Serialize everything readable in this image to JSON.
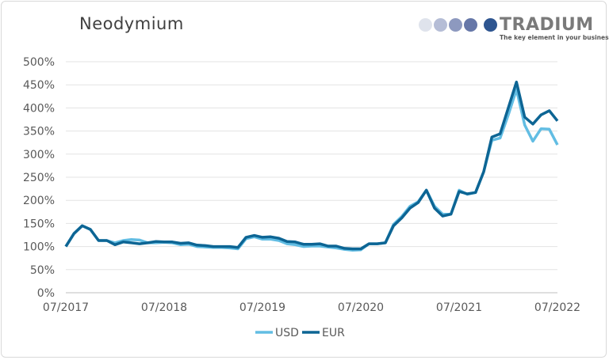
{
  "chart_data": {
    "type": "line",
    "title": "Neodymium",
    "xlabel": "",
    "ylabel": "",
    "x_start": "07/2017",
    "x_end": "07/2022",
    "x_frequency": "monthly",
    "x_tick_labels": [
      "07/2017",
      "07/2018",
      "07/2019",
      "07/2020",
      "07/2021",
      "07/2022"
    ],
    "y_tick_labels": [
      "0%",
      "50%",
      "100%",
      "150%",
      "200%",
      "250%",
      "300%",
      "350%",
      "400%",
      "450%",
      "500%"
    ],
    "ylim": [
      0,
      500
    ],
    "grid": true,
    "legend_position": "bottom",
    "series": [
      {
        "name": "USD",
        "color": "#62bde3",
        "values": [
          100,
          128,
          145,
          137,
          113,
          113,
          108,
          113,
          115,
          114,
          108,
          108,
          109,
          108,
          104,
          105,
          100,
          99,
          98,
          98,
          97,
          95,
          117,
          121,
          116,
          116,
          113,
          106,
          104,
          100,
          101,
          101,
          99,
          97,
          94,
          92,
          93,
          106,
          106,
          108,
          148,
          165,
          187,
          197,
          222,
          187,
          170,
          170,
          222,
          213,
          217,
          262,
          330,
          335,
          385,
          440,
          363,
          328,
          355,
          354,
          320
        ]
      },
      {
        "name": "EUR",
        "color": "#0d6594",
        "values": [
          100,
          128,
          145,
          137,
          113,
          113,
          104,
          110,
          108,
          106,
          108,
          111,
          110,
          110,
          107,
          108,
          103,
          102,
          100,
          100,
          100,
          98,
          120,
          124,
          120,
          121,
          118,
          111,
          110,
          105,
          105,
          106,
          101,
          101,
          96,
          95,
          95,
          106,
          106,
          108,
          145,
          162,
          183,
          195,
          222,
          183,
          166,
          170,
          219,
          214,
          217,
          262,
          337,
          344,
          400,
          456,
          380,
          365,
          385,
          394,
          372
        ]
      }
    ]
  },
  "logo": {
    "brand": "TRADIUM",
    "tagline": "The key element in your business",
    "dot_colors": [
      "#dfe3ec",
      "#b5bdd6",
      "#8d99bf",
      "#6677a8",
      "#2e5590"
    ]
  }
}
